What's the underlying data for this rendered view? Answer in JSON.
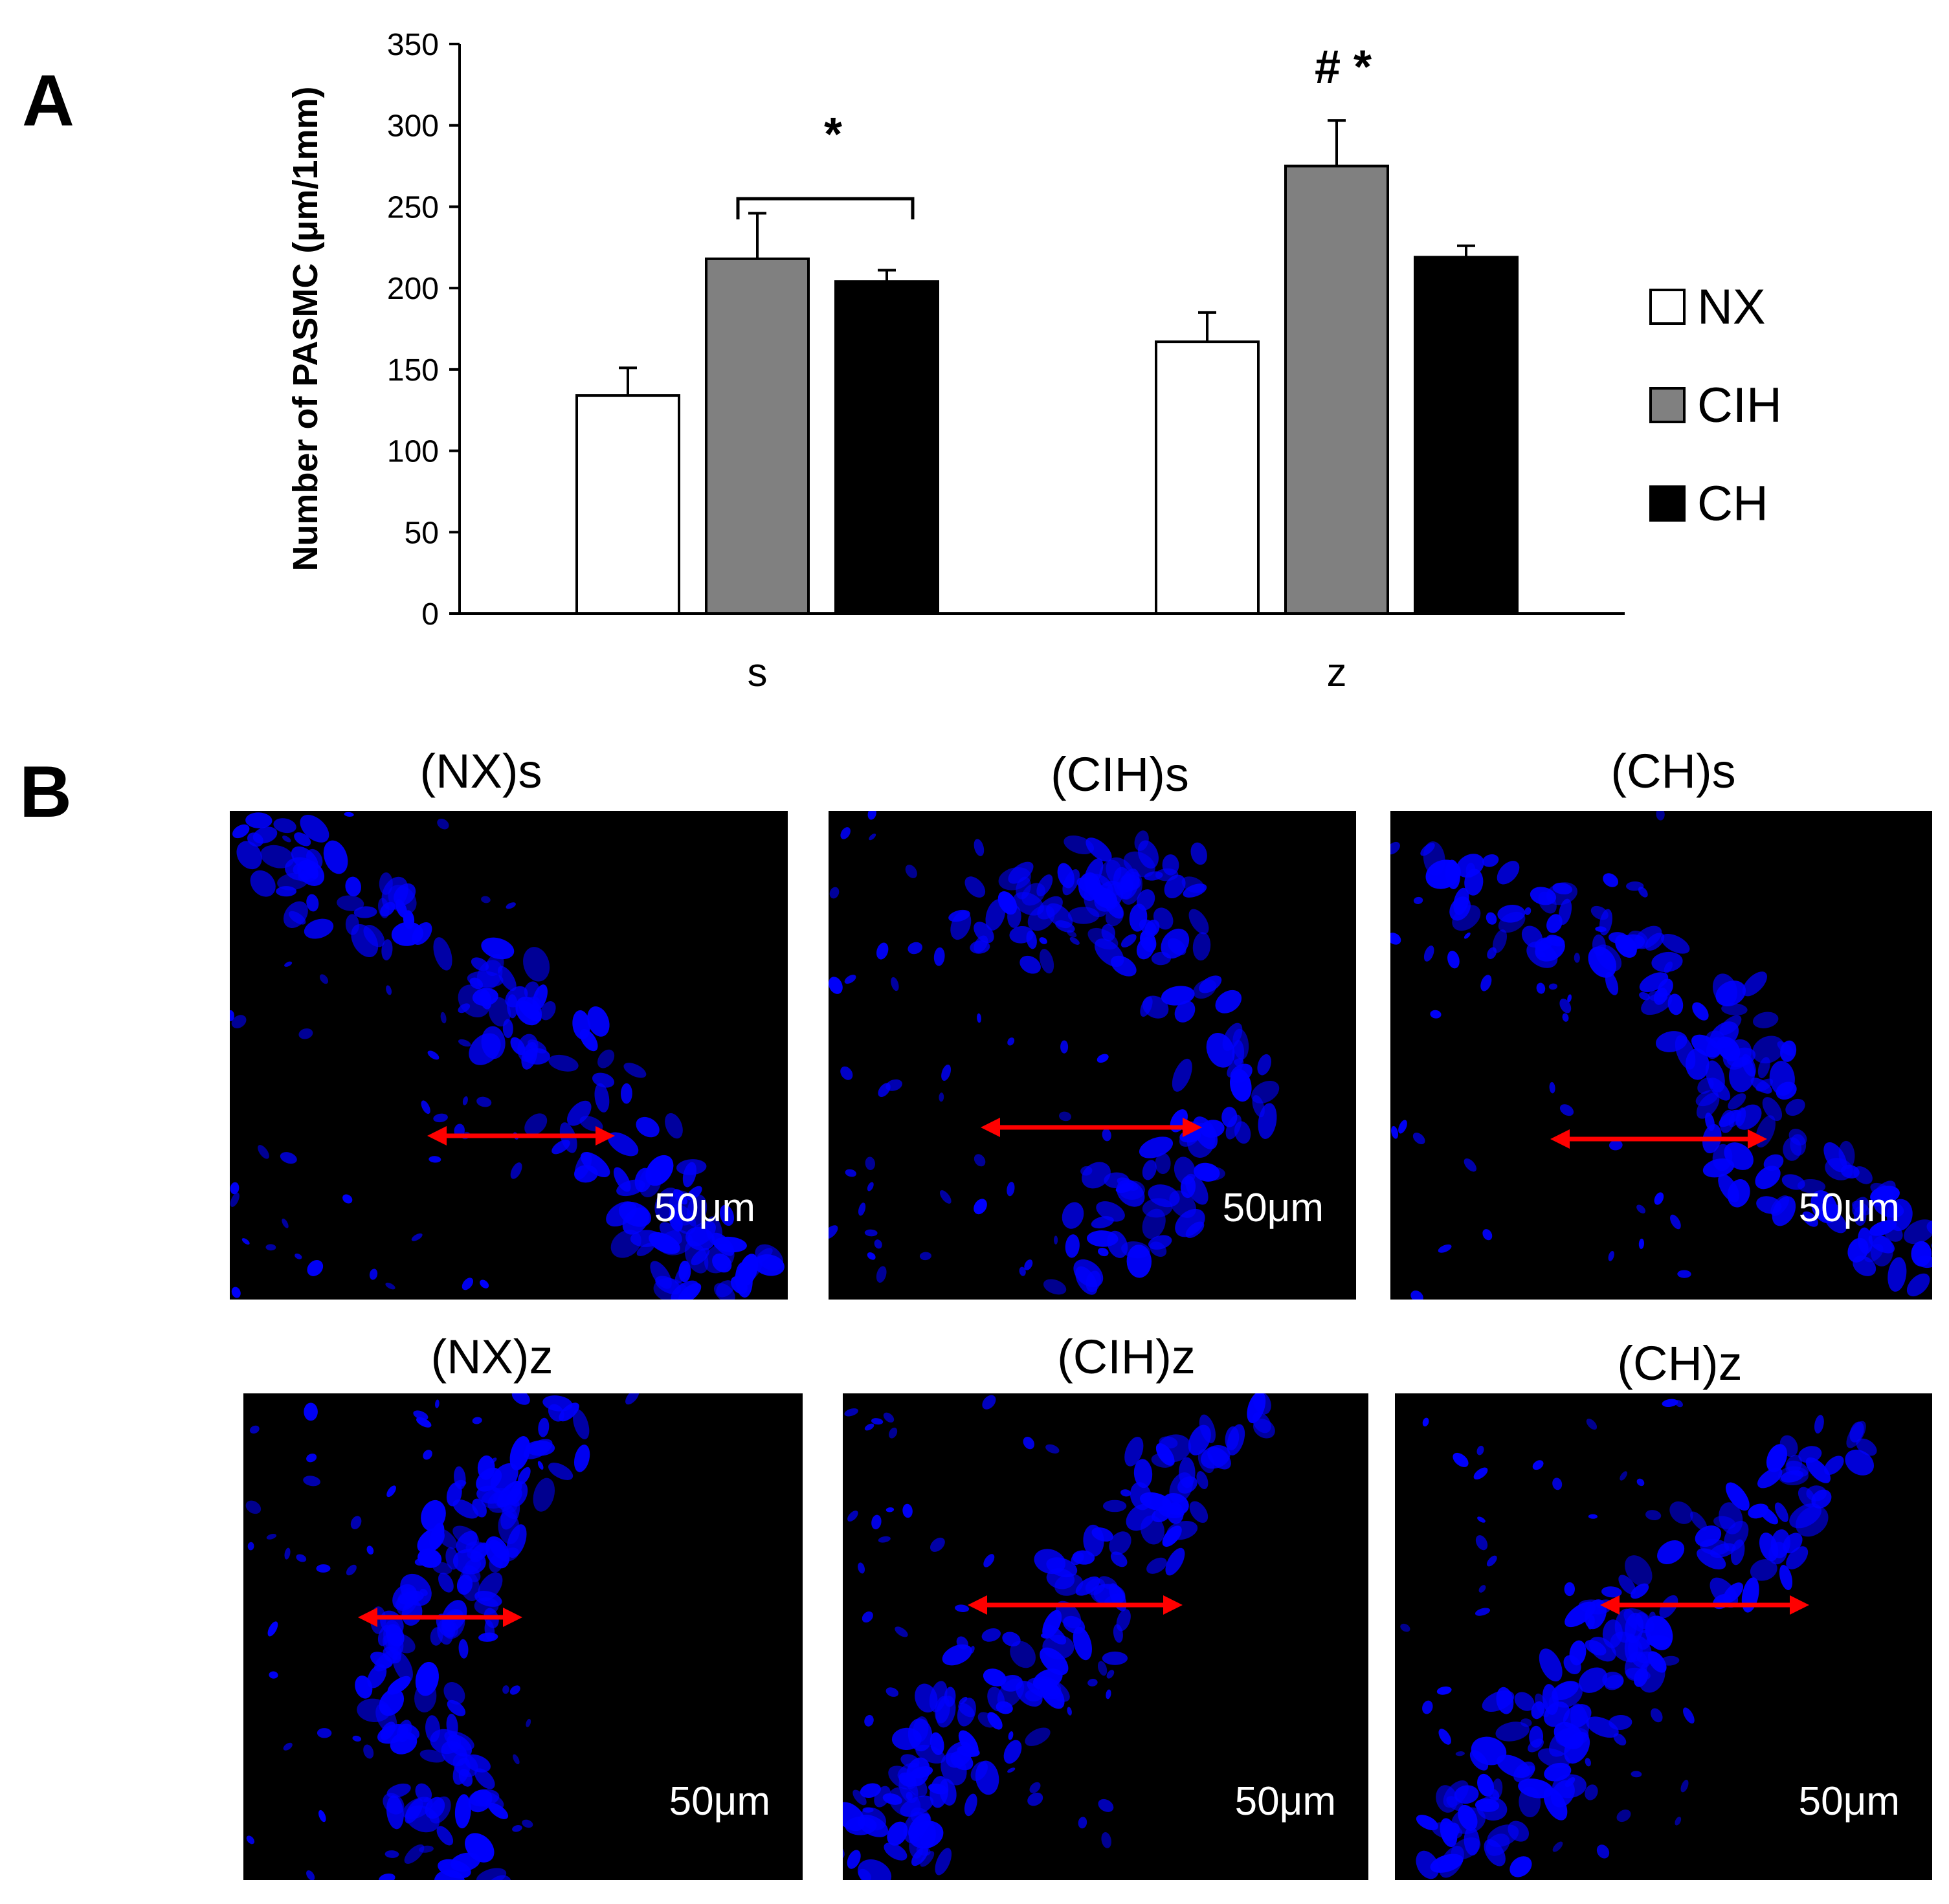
{
  "panels": {
    "a_label": "A",
    "b_label": "B"
  },
  "chart_data": {
    "type": "bar",
    "title": "",
    "xlabel": "",
    "ylabel": "Number of PASMC (μm/1mm)",
    "ylim": [
      0,
      350
    ],
    "yticks": [
      0,
      50,
      100,
      150,
      200,
      250,
      300,
      350
    ],
    "grid": false,
    "legend_position": "right",
    "categories": [
      "s",
      "z"
    ],
    "series": [
      {
        "name": "NX",
        "color": "#ffffff",
        "values": [
          134,
          167
        ],
        "errors": [
          17,
          18
        ]
      },
      {
        "name": "CIH",
        "color": "#808080",
        "values": [
          218,
          275
        ],
        "errors": [
          28,
          28
        ]
      },
      {
        "name": "CH",
        "color": "#000000",
        "values": [
          204,
          219
        ],
        "errors": [
          7,
          7
        ]
      }
    ],
    "annotations": [
      {
        "text": "*",
        "category": "s",
        "bracket": [
          "CIH",
          "CH"
        ]
      },
      {
        "text": "#  *",
        "category": "z",
        "over": "CIH"
      }
    ]
  },
  "micrographs": [
    {
      "title": "(NX)s",
      "scale": "50μm",
      "stain_color": "#0000ff",
      "marker_color": "#ff0000"
    },
    {
      "title": "(CIH)s",
      "scale": "50μm",
      "stain_color": "#0000ff",
      "marker_color": "#ff0000"
    },
    {
      "title": "(CH)s",
      "scale": "50μm",
      "stain_color": "#0000ff",
      "marker_color": "#ff0000"
    },
    {
      "title": "(NX)z",
      "scale": "50μm",
      "stain_color": "#0000ff",
      "marker_color": "#ff0000"
    },
    {
      "title": "(CIH)z",
      "scale": "50μm",
      "stain_color": "#0000ff",
      "marker_color": "#ff0000"
    },
    {
      "title": "(CH)z",
      "scale": "50μm",
      "stain_color": "#0000ff",
      "marker_color": "#ff0000"
    }
  ]
}
